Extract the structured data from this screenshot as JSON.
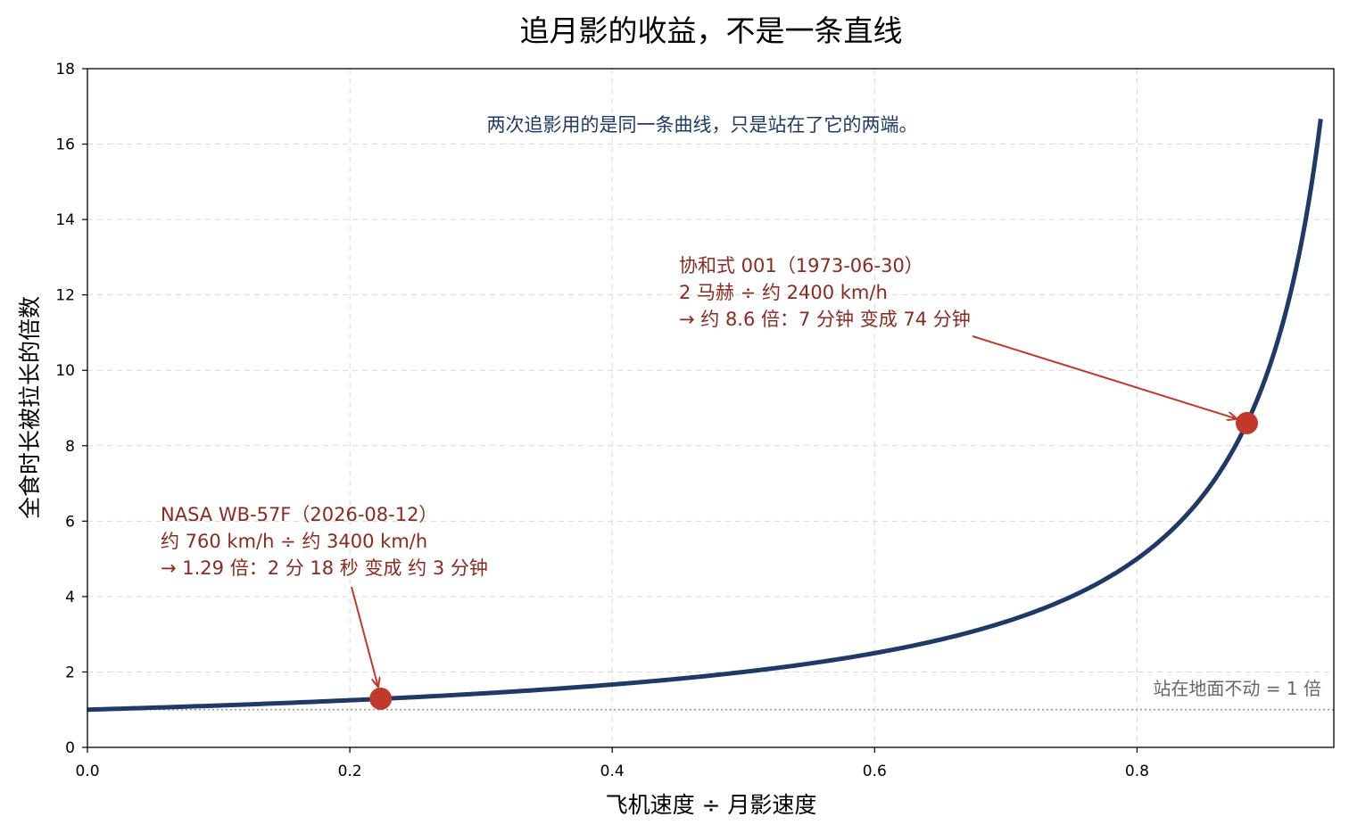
{
  "chart_data": {
    "type": "line",
    "title": "追月影的收益，不是一条直线",
    "xlabel": "飞机速度 ÷ 月影速度",
    "ylabel": "全食时长被拉长的倍数",
    "xlim": [
      0,
      0.95
    ],
    "ylim": [
      0,
      18
    ],
    "xticks": [
      "0.0",
      "0.2",
      "0.4",
      "0.6",
      "0.8"
    ],
    "yticks": [
      "0",
      "2",
      "4",
      "6",
      "8",
      "10",
      "12",
      "14",
      "16",
      "18"
    ],
    "grid": true,
    "series": [
      {
        "formula": "1 / (1 - x)",
        "x_range": [
          0,
          0.94
        ],
        "color": "#1f3a68",
        "x": [
          0,
          0.1,
          0.2,
          0.3,
          0.4,
          0.5,
          0.6,
          0.7,
          0.8,
          0.85,
          0.88,
          0.9,
          0.92,
          0.94
        ],
        "y": [
          1.0,
          1.11,
          1.25,
          1.43,
          1.67,
          2.0,
          2.5,
          3.33,
          5.0,
          6.67,
          8.33,
          10.0,
          12.5,
          16.67
        ]
      }
    ],
    "reference_line": {
      "y": 1,
      "label": "站在地面不动 = 1 倍",
      "color": "#999999"
    },
    "points": [
      {
        "x": 0.2235,
        "y": 1.29,
        "color": "#c0392b"
      },
      {
        "x": 0.8837,
        "y": 8.6,
        "color": "#c0392b"
      }
    ],
    "annotations": [
      {
        "lines": [
          "NASA WB-57F（2026-08-12）",
          "约 760 km/h ÷ 约 3400 km/h",
          "→ 1.29 倍：2 分 18 秒 变成 约 3 分钟"
        ],
        "color": "#8b2a1f"
      },
      {
        "lines": [
          "协和式 001（1973-06-30）",
          "2 马赫 ÷ 约 2400 km/h",
          "→ 约 8.6 倍：7 分钟 变成 74 分钟"
        ],
        "color": "#8b2a1f"
      }
    ],
    "note": {
      "text": "两次追影用的是同一条曲线，只是站在了它的两端。",
      "color": "#1f3a68"
    }
  }
}
